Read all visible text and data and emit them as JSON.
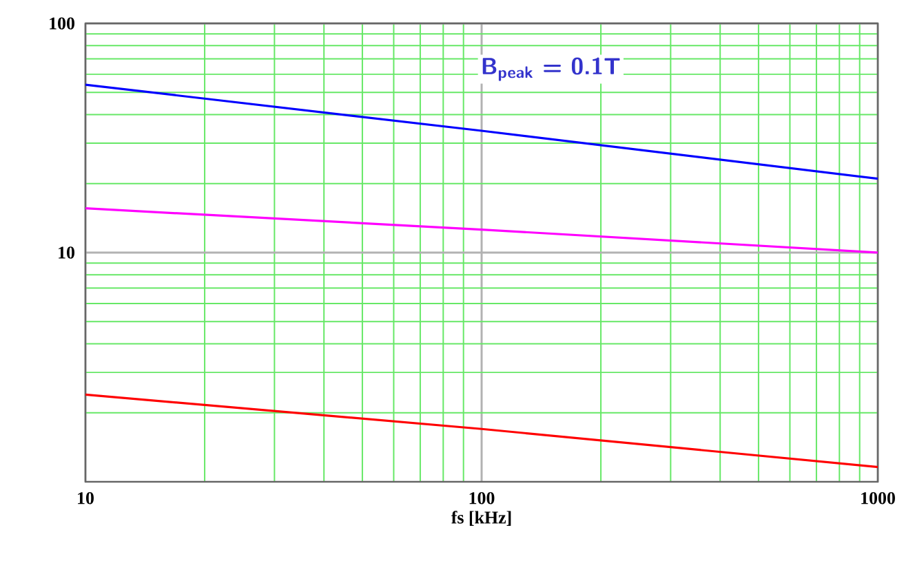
{
  "chart_data": {
    "type": "line",
    "xlabel": "fs [kHz]",
    "x": [
      10,
      100,
      1000
    ],
    "series": [
      {
        "color": "#0000ff",
        "values": [
          54,
          34,
          21
        ]
      },
      {
        "color": "#ff00ff",
        "values": [
          15.6,
          12.6,
          10
        ]
      },
      {
        "color": "#ff0000",
        "values": [
          2.4,
          1.7,
          1.16
        ]
      }
    ],
    "xlim": [
      10,
      1000
    ],
    "ylim": [
      1,
      100
    ],
    "xticks": [
      10,
      {
        "value": 20,
        "label": null
      },
      {
        "value": 30,
        "label": null
      },
      {
        "value": 40,
        "label": null
      },
      {
        "value": 50,
        "label": null
      },
      {
        "value": 60,
        "label": null
      },
      {
        "value": 70,
        "label": null
      },
      {
        "value": 80,
        "label": null
      },
      {
        "value": 90,
        "label": null
      },
      100,
      {
        "value": 200,
        "label": null
      },
      {
        "value": 300,
        "label": null
      },
      {
        "value": 400,
        "label": null
      },
      {
        "value": 500,
        "label": null
      },
      {
        "value": 600,
        "label": null
      },
      {
        "value": 700,
        "label": null
      },
      {
        "value": 800,
        "label": null
      },
      {
        "value": 900,
        "label": null
      },
      1000
    ],
    "yticks": [
      {
        "value": 2,
        "label": null
      },
      {
        "value": 3,
        "label": null
      },
      {
        "value": 4,
        "label": null
      },
      {
        "value": 5,
        "label": null
      },
      {
        "value": 6,
        "label": null
      },
      {
        "value": 7,
        "label": null
      },
      {
        "value": 8,
        "label": null
      },
      {
        "value": 9,
        "label": null
      },
      10,
      {
        "value": 20,
        "label": null
      },
      {
        "value": 30,
        "label": null
      },
      {
        "value": 40,
        "label": null
      },
      {
        "value": 50,
        "label": null
      },
      {
        "value": 60,
        "label": null
      },
      {
        "value": 70,
        "label": null
      },
      {
        "value": 80,
        "label": null
      },
      {
        "value": 90,
        "label": null
      },
      100
    ],
    "log": "xy",
    "grid": true,
    "annotations": [
      "B$_{peak}$ = 0.1T"
    ]
  }
}
